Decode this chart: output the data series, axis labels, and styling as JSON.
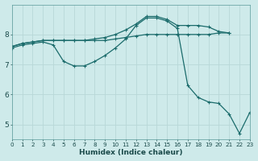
{
  "xlabel": "Humidex (Indice chaleur)",
  "bg_color": "#ceeaea",
  "grid_color": "#b8d8d8",
  "line_color": "#1a6b6b",
  "series1": {
    "x": [
      0,
      1,
      2,
      3,
      4,
      5,
      6,
      7,
      8,
      9,
      10,
      11,
      12,
      13,
      14,
      15,
      16,
      17,
      18,
      19,
      20,
      21
    ],
    "y": [
      7.6,
      7.7,
      7.75,
      7.8,
      7.8,
      7.8,
      7.8,
      7.8,
      7.8,
      7.8,
      7.85,
      7.9,
      7.95,
      8.0,
      8.0,
      8.0,
      8.0,
      8.0,
      8.0,
      8.0,
      8.05,
      8.05
    ]
  },
  "series2": {
    "x": [
      0,
      1,
      2,
      3,
      4,
      5,
      6,
      7,
      8,
      9,
      10,
      11,
      12,
      13,
      14,
      15,
      16,
      17,
      18,
      19,
      20,
      21
    ],
    "y": [
      7.6,
      7.7,
      7.75,
      7.8,
      7.8,
      7.8,
      7.8,
      7.8,
      7.85,
      7.9,
      8.0,
      8.15,
      8.35,
      8.6,
      8.6,
      8.5,
      8.3,
      8.3,
      8.3,
      8.25,
      8.1,
      8.05
    ]
  },
  "series3": {
    "x": [
      0,
      1,
      2,
      3,
      4,
      5,
      6,
      7,
      8,
      9,
      10,
      11,
      12,
      13,
      14,
      15,
      16,
      17,
      18,
      19,
      20,
      21,
      22,
      23
    ],
    "y": [
      7.55,
      7.65,
      7.7,
      7.75,
      7.65,
      7.1,
      6.95,
      6.95,
      7.1,
      7.3,
      7.55,
      7.85,
      8.3,
      8.55,
      8.55,
      8.45,
      8.2,
      6.3,
      5.9,
      5.75,
      5.7,
      5.35,
      4.7,
      5.4
    ]
  },
  "xlim": [
    0,
    23
  ],
  "ylim": [
    4.5,
    9.0
  ],
  "yticks": [
    5,
    6,
    7,
    8
  ],
  "xticks": [
    0,
    1,
    2,
    3,
    4,
    5,
    6,
    7,
    8,
    9,
    10,
    11,
    12,
    13,
    14,
    15,
    16,
    17,
    18,
    19,
    20,
    21,
    22,
    23
  ]
}
